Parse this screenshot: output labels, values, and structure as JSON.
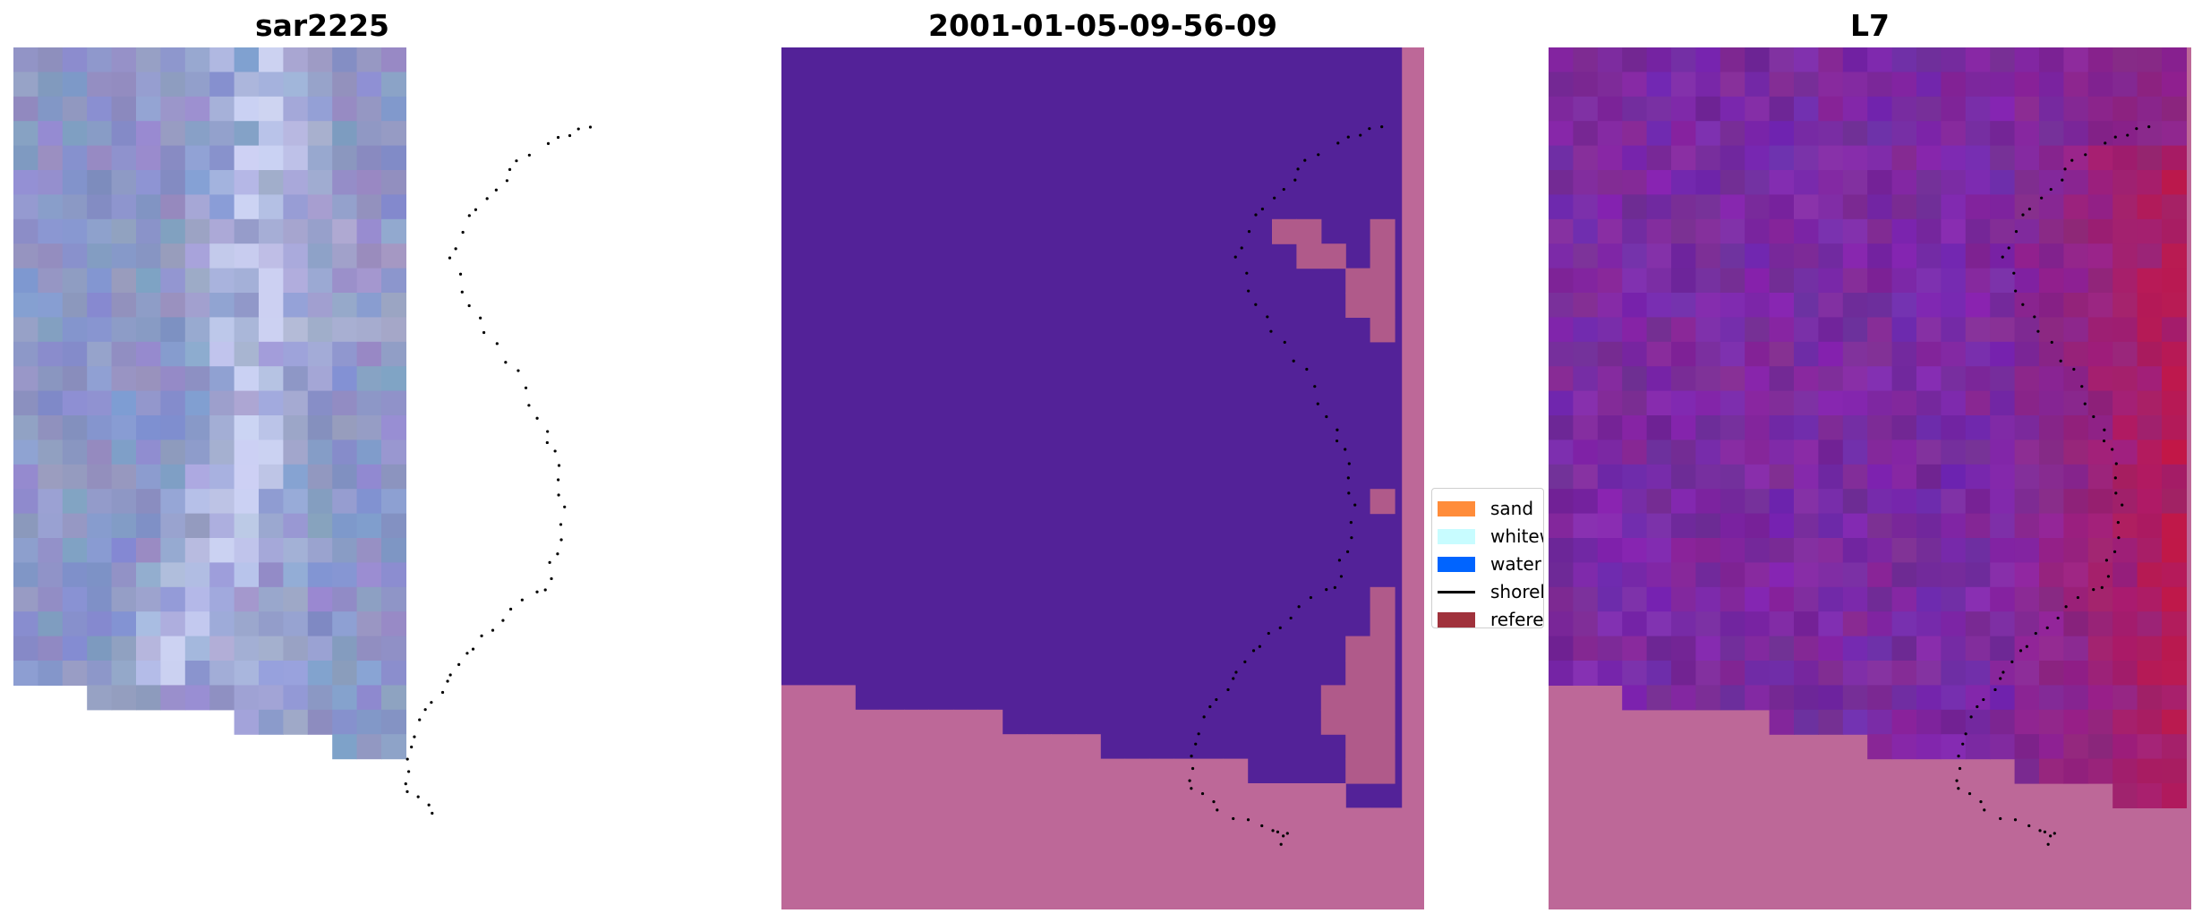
{
  "panels": [
    {
      "title": "sar2225"
    },
    {
      "title": "2001-01-05-09-56-09"
    },
    {
      "title": "L7"
    }
  ],
  "legend": {
    "items": [
      {
        "label": "sand",
        "kind": "patch",
        "color": "#ff8c3a"
      },
      {
        "label": "whitewater",
        "kind": "patch",
        "color": "#c8fcff"
      },
      {
        "label": "water",
        "kind": "patch",
        "color": "#0064ff"
      },
      {
        "label": "shoreline",
        "kind": "line",
        "color": "#000000"
      },
      {
        "label": "reference",
        "kind": "patch",
        "color": "#a0323c"
      }
    ]
  },
  "colors": {
    "background": "#ffffff",
    "land_mask": "#bd6898",
    "water_class": "#532298",
    "rgb_base": "#8c96c8",
    "l7_base": "#7b2aa2",
    "l7_high": "#c21746",
    "shoreline_points": "#000000"
  }
}
